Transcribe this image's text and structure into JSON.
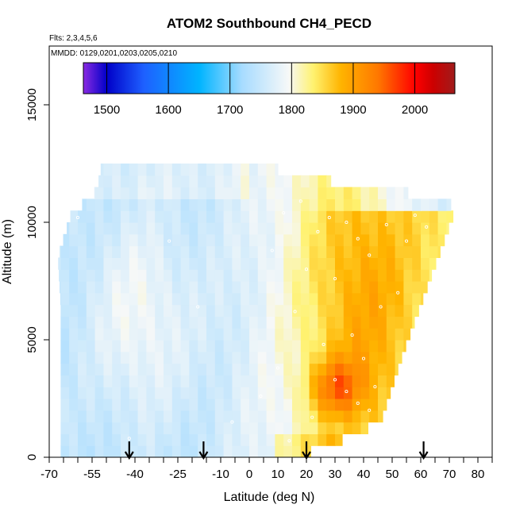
{
  "chart_data": {
    "type": "heatmap",
    "title": "ATOM2 Southbound CH4_PECD",
    "annotations": {
      "flights": "Flts: 2,3,4,5,6",
      "dates": "MMDD: 0129,0201,0203,0205,0210"
    },
    "xlabel": "Latitude (deg N)",
    "ylabel": "Altitude (m)",
    "xlim": [
      -70,
      85
    ],
    "ylim": [
      0,
      17500
    ],
    "x_ticks": [
      -70,
      -55,
      -40,
      -25,
      -10,
      0,
      10,
      20,
      30,
      40,
      50,
      60,
      70,
      80
    ],
    "x_minor_step": 5,
    "y_ticks": [
      0,
      5000,
      10000,
      15000
    ],
    "colorbar": {
      "ticks": [
        1500,
        1600,
        1700,
        1800,
        1900,
        2000
      ],
      "range": [
        1462,
        2065
      ],
      "stops": [
        [
          1462,
          "#8a2be2"
        ],
        [
          1500,
          "#0000c8"
        ],
        [
          1560,
          "#1e60ff"
        ],
        [
          1650,
          "#00b4ff"
        ],
        [
          1720,
          "#a8dcff"
        ],
        [
          1795,
          "#f6f8f8"
        ],
        [
          1835,
          "#fff270"
        ],
        [
          1880,
          "#ffb400"
        ],
        [
          1940,
          "#ff7800"
        ],
        [
          2000,
          "#ff0000"
        ],
        [
          2030,
          "#cc0000"
        ],
        [
          2065,
          "#a01c1c"
        ]
      ]
    },
    "arrows_x": [
      -42,
      -16,
      20,
      61
    ],
    "lat_bin": 3,
    "alt_bin": 500,
    "fields": {
      "background": {
        "lat": [
          -30,
          50
        ],
        "val": [
          1742,
          1840
        ]
      },
      "bulge": {
        "lat": 38,
        "alt": 6500,
        "dlat": 18,
        "dalt": 6500,
        "amp": 55
      },
      "hotspot": {
        "lat": 30,
        "alt": 3000,
        "dlat": 9,
        "dalt": 1200,
        "amp": 95
      },
      "sw_pocket": {
        "lat": -38,
        "alt": 6000,
        "dlat": 18,
        "dalt": 4500,
        "amp": 50
      },
      "top_cap": {
        "lat": 55,
        "alt": 11000,
        "amp": -75
      }
    },
    "envelope": [
      {
        "alt": 0,
        "lat_min": -66,
        "lat_max": 15
      },
      {
        "alt": 500,
        "lat_min": -66,
        "lat_max": 28
      },
      {
        "alt": 1500,
        "lat_min": -66,
        "lat_max": 46
      },
      {
        "alt": 3000,
        "lat_min": -66,
        "lat_max": 50
      },
      {
        "alt": 4500,
        "lat_min": -66,
        "lat_max": 54
      },
      {
        "alt": 6500,
        "lat_min": -66,
        "lat_max": 60
      },
      {
        "alt": 8500,
        "lat_min": -67,
        "lat_max": 66
      },
      {
        "alt": 10500,
        "lat_min": -62,
        "lat_max": 72
      },
      {
        "alt": 11000,
        "lat_min": -55,
        "lat_max": 69
      },
      {
        "alt": 12000,
        "lat_min": -52,
        "lat_max": 15
      },
      {
        "alt": 12500,
        "lat_min": -52,
        "lat_max": 5
      }
    ],
    "sample_points": [
      [
        30,
        3300
      ],
      [
        34,
        2800
      ],
      [
        38,
        2300
      ],
      [
        42,
        2000
      ],
      [
        45,
        1300
      ],
      [
        22,
        1700
      ],
      [
        44,
        3000
      ],
      [
        40,
        4200
      ],
      [
        26,
        4800
      ],
      [
        36,
        5200
      ],
      [
        46,
        6400
      ],
      [
        52,
        7000
      ],
      [
        30,
        7600
      ],
      [
        20,
        8000
      ],
      [
        42,
        8600
      ],
      [
        55,
        9200
      ],
      [
        24,
        9600
      ],
      [
        38,
        9300
      ],
      [
        48,
        9900
      ],
      [
        62,
        9800
      ],
      [
        28,
        10200
      ],
      [
        12,
        10400
      ],
      [
        8,
        8800
      ],
      [
        16,
        6200
      ],
      [
        10,
        3800
      ],
      [
        4,
        2600
      ],
      [
        -6,
        1500
      ],
      [
        -18,
        6400
      ],
      [
        -42,
        800
      ],
      [
        -60,
        10200
      ],
      [
        -28,
        9200
      ],
      [
        66,
        11300
      ],
      [
        58,
        10300
      ],
      [
        18,
        10900
      ],
      [
        34,
        10000
      ],
      [
        14,
        700
      ]
    ]
  }
}
